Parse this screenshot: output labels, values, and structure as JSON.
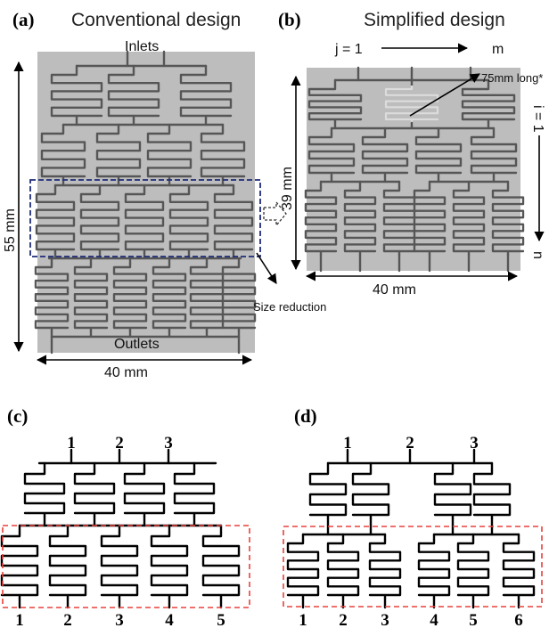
{
  "panels": {
    "a": {
      "label": "(a)",
      "title": "Conventional design",
      "inlets": "Inlets",
      "outlets": "Outlets",
      "height": "55 mm",
      "width": "40 mm"
    },
    "b": {
      "label": "(b)",
      "title": "Simplified design",
      "j_start": "j = 1",
      "j_end": "m",
      "i_start": "i = 1",
      "i_end": "n",
      "channel_note": "75mm long*",
      "height": "39 mm",
      "width": "40 mm"
    },
    "size_reduction": "Size reduction",
    "c": {
      "label": "(c)",
      "inlets": [
        "1",
        "2",
        "3"
      ],
      "outlets": [
        "1",
        "2",
        "3",
        "4",
        "5"
      ]
    },
    "d": {
      "label": "(d)",
      "inlets": [
        "1",
        "2",
        "3"
      ],
      "outlets": [
        "1",
        "2",
        "3",
        "4",
        "5",
        "6"
      ]
    }
  },
  "colors": {
    "chip": "#bdbdbd",
    "channel": "#565656",
    "blue_box": "#1f2d7a",
    "red_box": "#e8413c"
  }
}
